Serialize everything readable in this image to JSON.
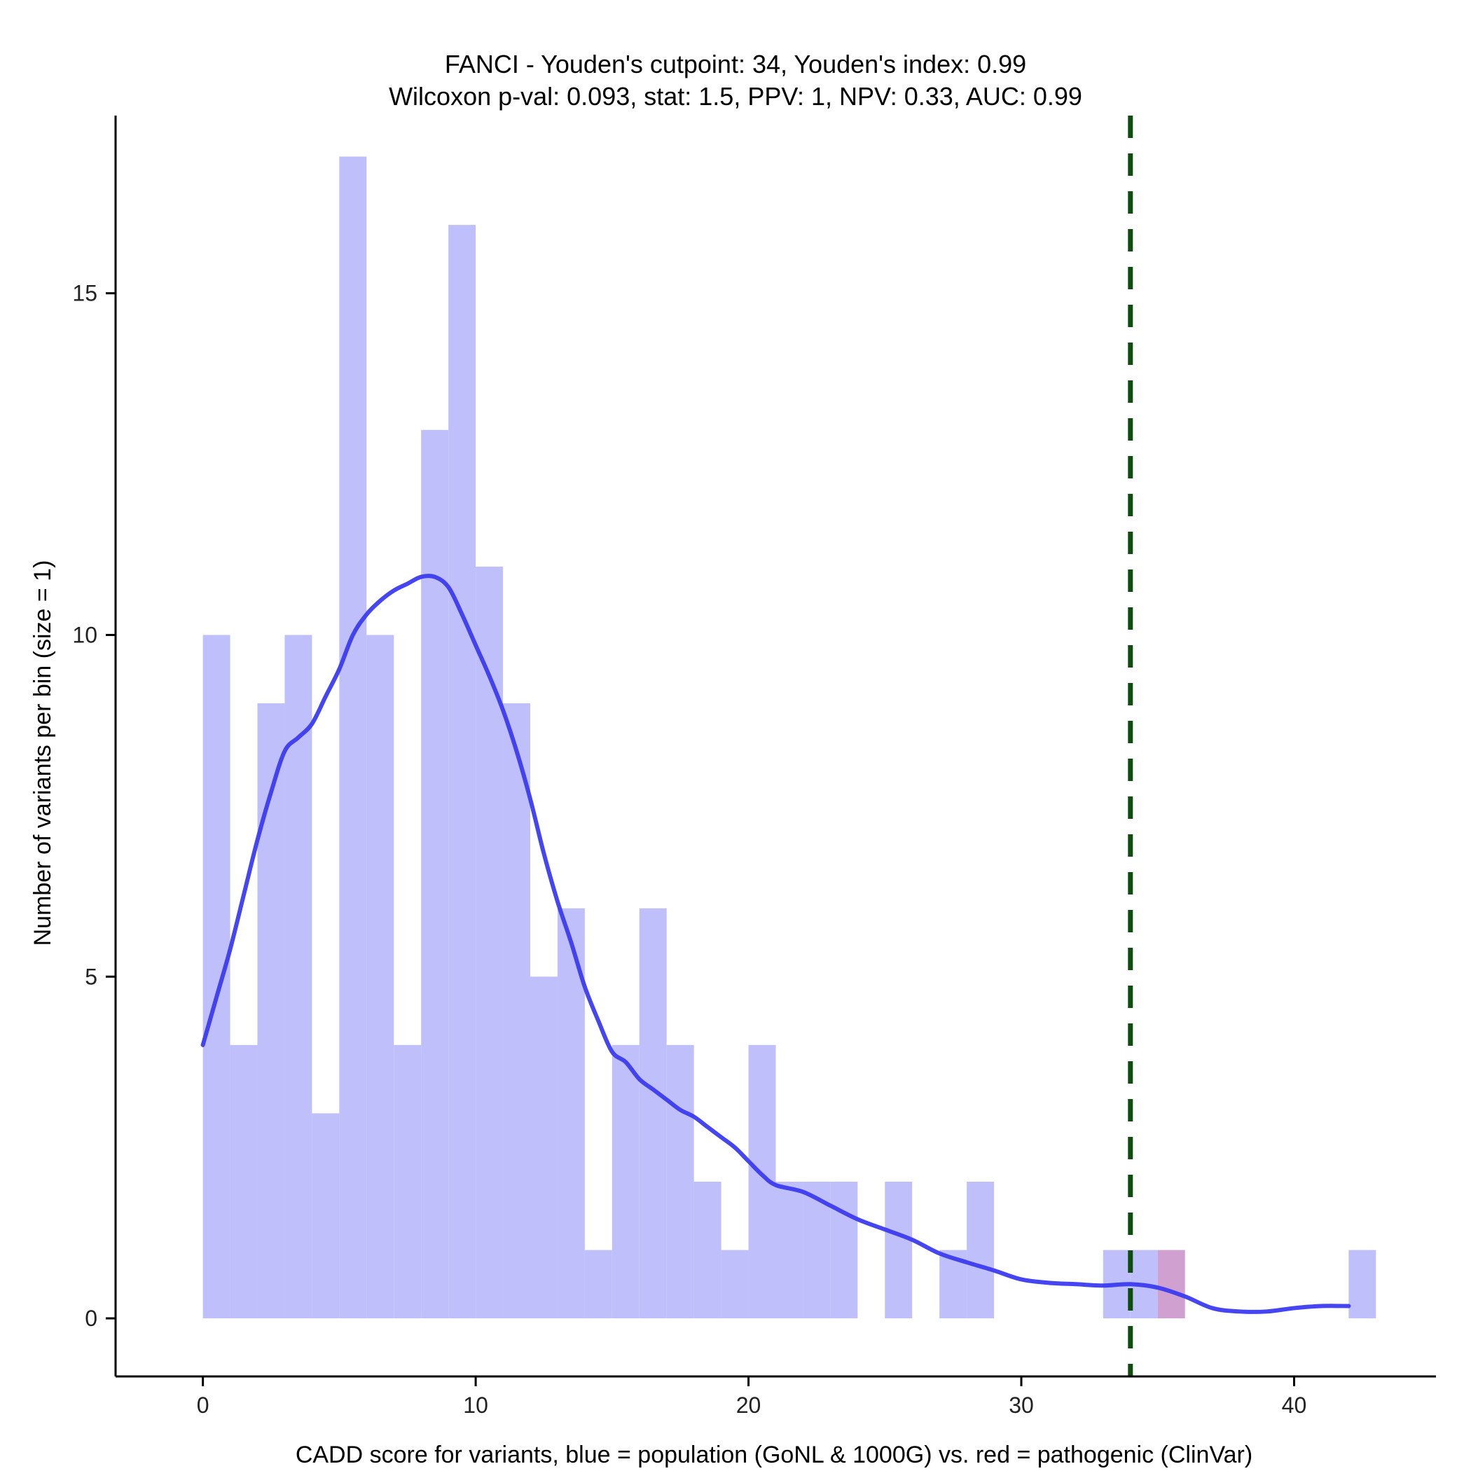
{
  "chart_data": {
    "type": "bar",
    "title": "FANCI - Youden's cutpoint: 34, Youden's index: 0.99",
    "subtitle": "Wilcoxon p-val: 0.093, stat: 1.5, PPV: 1, NPV: 0.33, AUC: 0.99",
    "xlabel": "CADD score for variants, blue = population (GoNL & 1000G) vs. red = pathogenic (ClinVar)",
    "ylabel": "Number of variants per bin (size = 1)",
    "xlim": [
      -3.2,
      45.2
    ],
    "ylim": [
      -0.85,
      17.6
    ],
    "x_ticks": [
      0,
      10,
      20,
      30,
      40
    ],
    "y_ticks": [
      0,
      5,
      10,
      15
    ],
    "bin_size": 1,
    "cutpoint": 34,
    "colors": {
      "population": "#bfbffb",
      "pathogenic": "#c890c8",
      "density": "#3b3bf0",
      "cutpoint": "#0f4d0f"
    },
    "series": [
      {
        "name": "population",
        "bin_starts": [
          0,
          1,
          2,
          3,
          4,
          5,
          6,
          7,
          8,
          9,
          10,
          11,
          12,
          13,
          14,
          15,
          16,
          17,
          18,
          19,
          20,
          21,
          22,
          23,
          25,
          27,
          28,
          33,
          34,
          42
        ],
        "values": [
          10,
          4,
          9,
          10,
          3,
          17,
          10,
          4,
          13,
          16,
          11,
          9,
          5,
          6,
          1,
          4,
          6,
          4,
          2,
          1,
          4,
          2,
          2,
          2,
          2,
          1,
          2,
          1,
          1,
          1
        ]
      },
      {
        "name": "pathogenic",
        "bin_starts": [
          35
        ],
        "values": [
          1
        ]
      }
    ],
    "density_curve": {
      "x": [
        0,
        0.5,
        1,
        1.5,
        2,
        2.5,
        3,
        3.5,
        4,
        4.5,
        5,
        5.5,
        6,
        6.5,
        7,
        7.5,
        8,
        8.5,
        9,
        9.5,
        10,
        10.5,
        11,
        11.5,
        12,
        12.5,
        13,
        13.5,
        14,
        14.5,
        15,
        15.5,
        16,
        16.5,
        17,
        17.5,
        18,
        18.5,
        19,
        19.5,
        20,
        20.5,
        21,
        22,
        23,
        24,
        25,
        26,
        27,
        28,
        29,
        30,
        31,
        32,
        33,
        34,
        35,
        36,
        37,
        38,
        39,
        40,
        41,
        42
      ],
      "y": [
        4.0,
        4.7,
        5.4,
        6.2,
        7.0,
        7.7,
        8.3,
        8.5,
        8.7,
        9.1,
        9.5,
        10.0,
        10.3,
        10.5,
        10.65,
        10.75,
        10.85,
        10.85,
        10.7,
        10.3,
        9.85,
        9.4,
        8.9,
        8.3,
        7.6,
        6.8,
        6.1,
        5.5,
        4.85,
        4.35,
        3.9,
        3.75,
        3.5,
        3.35,
        3.2,
        3.05,
        2.95,
        2.8,
        2.65,
        2.5,
        2.3,
        2.1,
        1.95,
        1.85,
        1.65,
        1.45,
        1.3,
        1.15,
        0.95,
        0.82,
        0.7,
        0.57,
        0.52,
        0.5,
        0.48,
        0.5,
        0.45,
        0.32,
        0.15,
        0.1,
        0.1,
        0.15,
        0.18,
        0.18
      ]
    }
  }
}
